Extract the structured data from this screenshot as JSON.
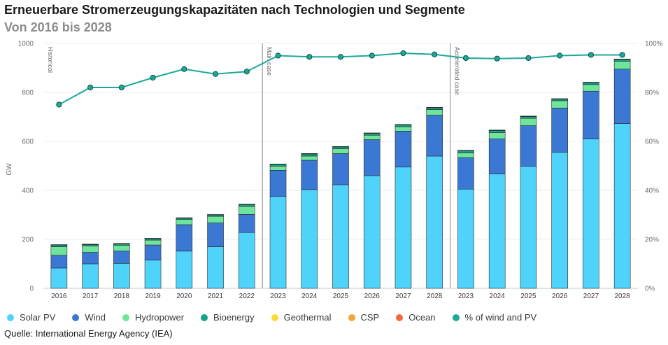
{
  "header": {
    "title": "Erneuerbare Stromerzeugungskapazitäten nach Technologien und Segmente",
    "subtitle": "Von  2016 bis 2028"
  },
  "source": "Quelle: International Energy Agency (IEA)",
  "chart_data": {
    "type": "bar",
    "stacked": true,
    "ylabel": "GW",
    "ylim": [
      0,
      1000
    ],
    "yticks": [
      "0",
      "200",
      "400",
      "600",
      "800",
      "1000"
    ],
    "y2lim": [
      0,
      100
    ],
    "y2ticks": [
      "0%",
      "20%",
      "40%",
      "60%",
      "80%",
      "100%"
    ],
    "grid": true,
    "legend_position": "bottom",
    "categories": [
      "2016",
      "2017",
      "2018",
      "2019",
      "2020",
      "2021",
      "2022",
      "2023",
      "2024",
      "2025",
      "2026",
      "2027",
      "2028",
      "2023",
      "2024",
      "2025",
      "2026",
      "2027",
      "2028"
    ],
    "segments": [
      {
        "label": "Historical",
        "start": 0,
        "end": 6
      },
      {
        "label": "Main case",
        "start": 7,
        "end": 12
      },
      {
        "label": "Accelerated case",
        "start": 13,
        "end": 18
      }
    ],
    "series": [
      {
        "name": "Solar PV",
        "color": "#4fd3fb",
        "values": [
          83,
          100,
          102,
          115,
          152,
          170,
          228,
          375,
          403,
          423,
          460,
          495,
          540,
          405,
          467,
          498,
          556,
          610,
          673
        ]
      },
      {
        "name": "Wind",
        "color": "#3b78d4",
        "values": [
          52,
          47,
          50,
          62,
          108,
          97,
          74,
          107,
          120,
          127,
          147,
          147,
          167,
          128,
          143,
          166,
          180,
          195,
          222
        ]
      },
      {
        "name": "Hydropower",
        "color": "#6ee59a",
        "values": [
          35,
          26,
          24,
          20,
          21,
          27,
          32,
          17,
          17,
          20,
          18,
          18,
          23,
          20,
          26,
          30,
          30,
          27,
          32
        ]
      },
      {
        "name": "Bioenergy",
        "color": "#13a38a",
        "values": [
          7,
          6,
          6,
          6,
          6,
          6,
          8,
          7,
          9,
          8,
          8,
          8,
          8,
          9,
          9,
          8,
          7,
          8,
          8
        ]
      },
      {
        "name": "Geothermal",
        "color": "#f5dc3a",
        "values": [
          0.5,
          0.5,
          0.5,
          0.5,
          0.5,
          0.5,
          0.5,
          0.5,
          0.5,
          0.5,
          0.5,
          0.5,
          0.5,
          0.5,
          0.5,
          0.5,
          0.5,
          0.5,
          0.5
        ]
      },
      {
        "name": "CSP",
        "color": "#f4a53a",
        "values": [
          0.5,
          0.5,
          0.5,
          0.5,
          0.5,
          0.5,
          0.5,
          0.5,
          0.5,
          0.5,
          0.5,
          0.5,
          0.5,
          0.5,
          0.5,
          0.5,
          0.5,
          0.5,
          0.5
        ]
      },
      {
        "name": "Ocean",
        "color": "#f06a3c",
        "values": [
          0.2,
          0.2,
          0.2,
          0.2,
          0.2,
          0.2,
          0.2,
          0.2,
          0.2,
          0.2,
          0.2,
          0.2,
          0.2,
          0.2,
          0.2,
          0.2,
          0.2,
          0.2,
          0.2
        ]
      },
      {
        "name": "% of wind and PV",
        "color": "#1ba99a",
        "type": "line",
        "axis": "right",
        "values": [
          75,
          82,
          82,
          86,
          89.5,
          87.5,
          88.5,
          95,
          94.5,
          94.5,
          95,
          96,
          95.5,
          94,
          93.8,
          94,
          95,
          95.3,
          95.3
        ]
      }
    ]
  }
}
